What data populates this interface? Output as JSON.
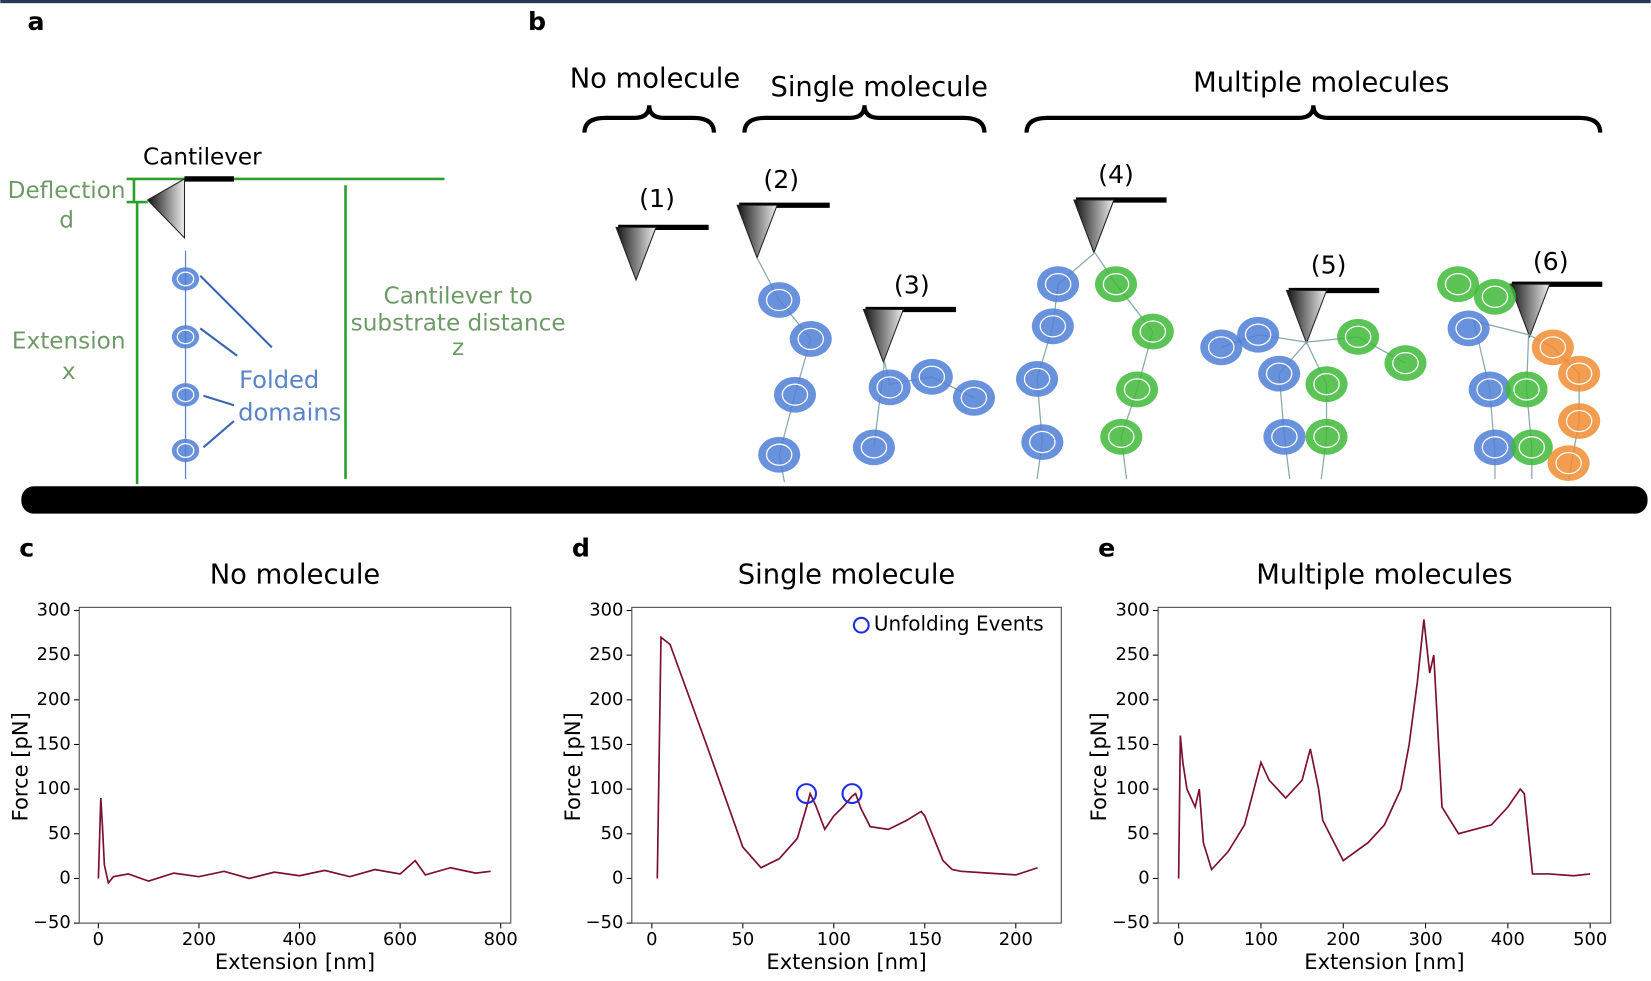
{
  "diagram": {
    "panel_a": "a",
    "panel_b": "b",
    "cantilever": "Cantilever",
    "deflection": "Deflection",
    "deflection_symbol": "d",
    "extension": "Extension",
    "extension_symbol": "x",
    "distance_line1": "Cantilever to",
    "distance_line2": "substrate distance",
    "distance_symbol": "z",
    "domains_line1": "Folded",
    "domains_line2": "domains",
    "substrate": "Substrate",
    "groups": [
      "No molecule",
      "Single molecule",
      "Multiple molecules"
    ],
    "cases": [
      "(1)",
      "(2)",
      "(3)",
      "(4)",
      "(5)",
      "(6)"
    ]
  },
  "chart_data": [
    {
      "type": "line",
      "panel_label": "c",
      "title": "No molecule",
      "xlabel": "Extension [nm]",
      "ylabel": "Force [pN]",
      "xlim": [
        -38,
        820
      ],
      "ylim": [
        -50,
        300
      ],
      "xticks": [
        0,
        200,
        400,
        600,
        800
      ],
      "yticks": [
        {
          "value": -50,
          "label": "−50"
        },
        0,
        50,
        100,
        150,
        200,
        250,
        300
      ],
      "series": [
        {
          "color": "#7b1030",
          "x": [
            0,
            5,
            8,
            12,
            20,
            30,
            60,
            100,
            150,
            200,
            250,
            300,
            350,
            400,
            450,
            500,
            550,
            600,
            630,
            650,
            700,
            750,
            780
          ],
          "values": [
            0,
            90,
            60,
            15,
            -5,
            2,
            5,
            -3,
            6,
            2,
            8,
            0,
            7,
            3,
            9,
            2,
            10,
            5,
            20,
            4,
            12,
            6,
            8
          ]
        }
      ]
    },
    {
      "type": "line",
      "panel_label": "d",
      "title": "Single molecule",
      "xlabel": "Extension [nm]",
      "ylabel": "Force [pN]",
      "xlim": [
        -11,
        225
      ],
      "ylim": [
        -50,
        300
      ],
      "xticks": [
        0,
        50,
        100,
        150,
        200
      ],
      "yticks": [
        {
          "value": -50,
          "label": "−50"
        },
        0,
        50,
        100,
        150,
        200,
        250,
        300
      ],
      "legend": "upper right",
      "series": [
        {
          "color": "#7b1030",
          "x": [
            3,
            5,
            10,
            30,
            50,
            60,
            70,
            80,
            85,
            87,
            90,
            95,
            100,
            105,
            110,
            112,
            115,
            120,
            130,
            140,
            148,
            150,
            160,
            165,
            170,
            185,
            200,
            212
          ],
          "values": [
            0,
            270,
            262,
            150,
            35,
            12,
            22,
            45,
            80,
            95,
            82,
            55,
            70,
            80,
            92,
            95,
            78,
            58,
            55,
            65,
            75,
            70,
            20,
            10,
            8,
            6,
            4,
            12
          ]
        },
        {
          "type": "scatter",
          "name": "Unfolding Events",
          "color": "#1f2fe0",
          "x": [
            85,
            110
          ],
          "values": [
            95,
            95
          ]
        }
      ]
    },
    {
      "type": "line",
      "panel_label": "e",
      "title": "Multiple molecules",
      "xlabel": "Extension [nm]",
      "ylabel": "Force [pN]",
      "xlim": [
        -25,
        525
      ],
      "ylim": [
        -50,
        300
      ],
      "xticks": [
        0,
        100,
        200,
        300,
        400,
        500
      ],
      "yticks": [
        {
          "value": -50,
          "label": "−50"
        },
        0,
        50,
        100,
        150,
        200,
        250,
        300
      ],
      "series": [
        {
          "color": "#7b1030",
          "x": [
            0,
            2,
            5,
            10,
            20,
            25,
            30,
            40,
            60,
            80,
            100,
            110,
            120,
            130,
            150,
            160,
            170,
            175,
            200,
            230,
            250,
            270,
            280,
            290,
            298,
            305,
            310,
            320,
            340,
            360,
            380,
            400,
            415,
            420,
            430,
            450,
            480,
            500
          ],
          "values": [
            0,
            160,
            130,
            100,
            80,
            100,
            40,
            10,
            30,
            60,
            130,
            110,
            100,
            90,
            110,
            145,
            100,
            65,
            20,
            40,
            60,
            100,
            150,
            220,
            290,
            230,
            250,
            80,
            50,
            55,
            60,
            80,
            100,
            95,
            5,
            5,
            3,
            5
          ]
        }
      ]
    }
  ]
}
